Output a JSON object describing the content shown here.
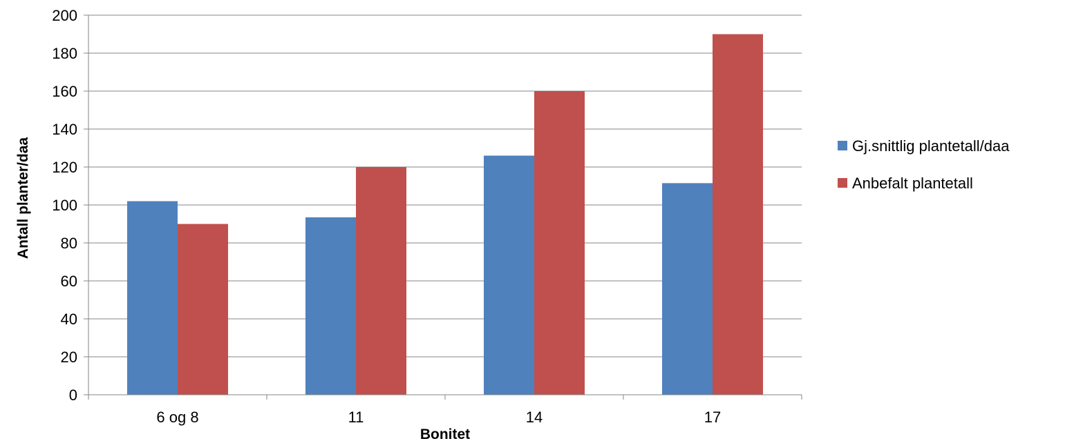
{
  "chart_data": {
    "type": "bar",
    "title": "",
    "xlabel": "Bonitet",
    "ylabel": "Antall planter/daa",
    "categories": [
      "6 og 8",
      "11",
      "14",
      "17"
    ],
    "series": [
      {
        "name": "Gj.snittlig plantetall/daa",
        "color": "#4F81BD",
        "values": [
          102,
          93.5,
          126,
          111.5
        ]
      },
      {
        "name": "Anbefalt plantetall",
        "color": "#C0504D",
        "values": [
          90,
          120,
          160,
          190
        ]
      }
    ],
    "ylim": [
      0,
      200
    ],
    "yticks": [
      0,
      20,
      40,
      60,
      80,
      100,
      120,
      140,
      160,
      180,
      200
    ],
    "grid": true,
    "legend_position": "right"
  }
}
